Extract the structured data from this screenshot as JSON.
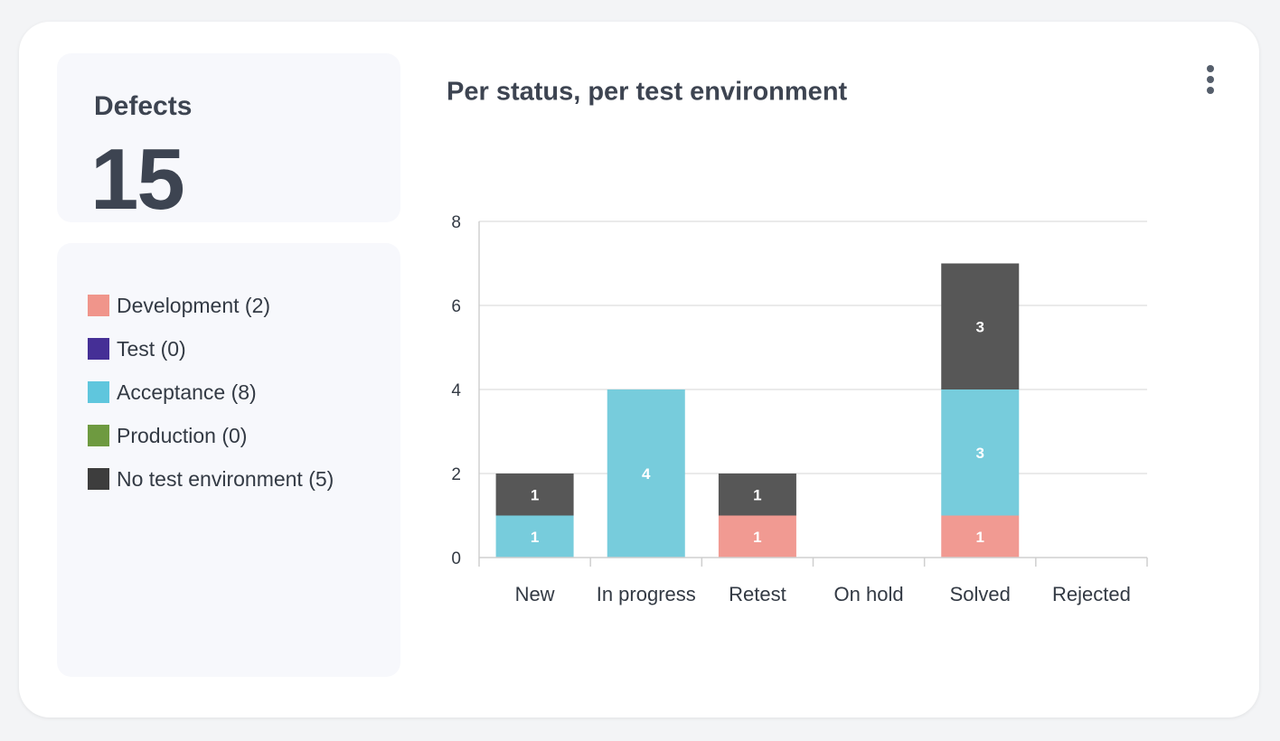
{
  "kpi": {
    "label": "Defects",
    "value": "15"
  },
  "legend": [
    {
      "label": "Development (2)",
      "color": "#f0958b"
    },
    {
      "label": "Test (0)",
      "color": "#452f96"
    },
    {
      "label": "Acceptance (8)",
      "color": "#5fc6dd"
    },
    {
      "label": "Production (0)",
      "color": "#6e9a40"
    },
    {
      "label": "No test environment (5)",
      "color": "#3d3d3d"
    }
  ],
  "menu": {
    "icon": "more-vertical-icon"
  },
  "chart_data": {
    "type": "bar",
    "stacked": true,
    "title": "Per status, per test environment",
    "xlabel": "",
    "ylabel": "",
    "categories": [
      "New",
      "In progress",
      "Retest",
      "On hold",
      "Solved",
      "Rejected"
    ],
    "yticks": [
      "0",
      "2",
      "4",
      "6",
      "8"
    ],
    "ylim": [
      0,
      8
    ],
    "grid": true,
    "series": [
      {
        "name": "Development",
        "color": "#f19a92",
        "values": [
          0,
          0,
          1,
          0,
          1,
          0
        ]
      },
      {
        "name": "Test",
        "color": "#452f96",
        "values": [
          0,
          0,
          0,
          0,
          0,
          0
        ]
      },
      {
        "name": "Acceptance",
        "color": "#77ccdc",
        "values": [
          1,
          4,
          0,
          0,
          3,
          0
        ]
      },
      {
        "name": "Production",
        "color": "#6e9a40",
        "values": [
          0,
          0,
          0,
          0,
          0,
          0
        ]
      },
      {
        "name": "No test environment",
        "color": "#575757",
        "values": [
          1,
          0,
          1,
          0,
          3,
          0
        ]
      }
    ]
  }
}
